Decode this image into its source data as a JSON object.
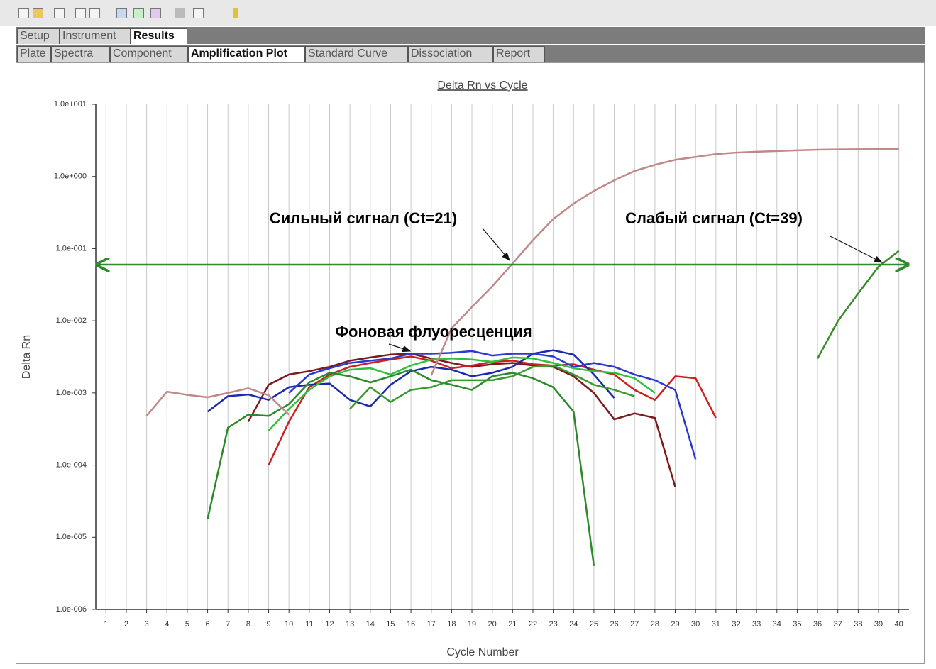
{
  "tabs": {
    "top": [
      "Setup",
      "Instrument",
      "Results"
    ],
    "bottom": [
      "Plate",
      "Spectra",
      "Component",
      "Amplification Plot",
      "Standard Curve",
      "Dissociation",
      "Report"
    ]
  },
  "chart_data": {
    "type": "line",
    "title": "Delta Rn vs Cycle",
    "x_label": "Cycle Number",
    "y_label": "Delta Rn",
    "log_y": true,
    "grid": true,
    "xlim": [
      0.5,
      40.5
    ],
    "xticks": [
      1,
      2,
      3,
      4,
      5,
      6,
      7,
      8,
      9,
      10,
      11,
      12,
      13,
      14,
      15,
      16,
      17,
      18,
      19,
      20,
      21,
      22,
      23,
      24,
      25,
      26,
      27,
      28,
      29,
      30,
      31,
      32,
      33,
      34,
      35,
      36,
      37,
      38,
      39,
      40
    ],
    "ylim": [
      1e-06,
      10
    ],
    "yticks": [
      {
        "value": 1e-06,
        "label": "1.0e-006"
      },
      {
        "value": 1e-05,
        "label": "1.0e-005"
      },
      {
        "value": 0.0001,
        "label": "1.0e-004"
      },
      {
        "value": 0.001,
        "label": "1.0e-003"
      },
      {
        "value": 0.01,
        "label": "1.0e-002"
      },
      {
        "value": 0.1,
        "label": "1.0e-001"
      },
      {
        "value": 1,
        "label": "1.0e+000"
      },
      {
        "value": 10,
        "label": "1.0e+001"
      }
    ],
    "threshold": 0.06,
    "threshold_color": "#2e8b2e",
    "annotations": [
      "Сильный сигнал (Ct=21)",
      "Слабый сигнал (Ct=39)",
      "Фоновая флуоресценция"
    ],
    "series": [
      {
        "color": "#7a1a1a",
        "x": [
          8,
          9,
          10,
          11,
          12,
          13,
          14,
          15,
          16,
          17,
          18,
          19,
          20,
          21,
          22,
          23,
          24,
          25,
          26,
          27,
          28,
          29
        ],
        "values": [
          0.0004,
          0.0013,
          0.0018,
          0.002,
          0.0023,
          0.0028,
          0.0031,
          0.0034,
          0.0035,
          0.003,
          0.0026,
          0.0023,
          0.0025,
          0.0026,
          0.0024,
          0.0023,
          0.0017,
          0.001,
          0.00043,
          0.00052,
          0.00045,
          5e-05
        ]
      },
      {
        "color": "#cc2020",
        "x": [
          9,
          10,
          11,
          12,
          13,
          14,
          15,
          16,
          17,
          18,
          19,
          20,
          21,
          22,
          23,
          24,
          25,
          26,
          27,
          28,
          29,
          30,
          31
        ],
        "values": [
          0.0001,
          0.0004,
          0.0012,
          0.0018,
          0.0023,
          0.0026,
          0.0029,
          0.0032,
          0.0028,
          0.0022,
          0.0024,
          0.0027,
          0.0028,
          0.0025,
          0.0024,
          0.0025,
          0.0021,
          0.0018,
          0.0011,
          0.0008,
          0.0017,
          0.0016,
          0.00045
        ]
      },
      {
        "color": "#1a2aa8",
        "x": [
          6,
          7,
          8,
          9,
          10,
          11,
          12,
          13,
          14,
          15,
          16,
          17,
          18,
          19,
          20,
          21,
          22,
          23,
          24,
          25,
          26
        ],
        "values": [
          0.00055,
          0.0009,
          0.00095,
          0.0008,
          0.0012,
          0.0013,
          0.00135,
          0.0008,
          0.00065,
          0.0013,
          0.002,
          0.0023,
          0.0021,
          0.0017,
          0.0019,
          0.0023,
          0.0035,
          0.0039,
          0.0034,
          0.0018,
          0.00085
        ]
      },
      {
        "color": "#2a3ad0",
        "x": [
          10,
          11,
          12,
          13,
          14,
          15,
          16,
          17,
          18,
          19,
          20,
          21,
          22,
          23,
          24,
          25,
          26,
          27,
          28,
          29,
          30
        ],
        "values": [
          0.001,
          0.0018,
          0.0022,
          0.0026,
          0.0028,
          0.003,
          0.0035,
          0.0035,
          0.0036,
          0.0038,
          0.0033,
          0.0035,
          0.0035,
          0.0032,
          0.0023,
          0.0026,
          0.0023,
          0.0018,
          0.0015,
          0.0011,
          0.00012
        ]
      },
      {
        "color": "#30c040",
        "x": [
          9,
          10,
          11,
          12,
          13,
          14,
          15,
          16,
          17,
          18,
          19,
          20,
          21,
          22,
          23,
          24,
          25,
          26,
          27,
          28
        ],
        "values": [
          0.0003,
          0.0006,
          0.0011,
          0.0017,
          0.0021,
          0.0022,
          0.0018,
          0.0024,
          0.0029,
          0.003,
          0.0029,
          0.0027,
          0.0031,
          0.003,
          0.0026,
          0.0022,
          0.002,
          0.0019,
          0.0016,
          0.001
        ]
      },
      {
        "color": "#2a8a2a",
        "x": [
          6,
          7,
          8,
          9,
          10,
          11,
          12,
          13,
          14,
          15,
          16,
          17,
          18,
          19,
          20,
          21,
          22,
          23,
          24,
          25
        ],
        "values": [
          1.8e-05,
          0.00033,
          0.0005,
          0.00048,
          0.0007,
          0.0014,
          0.0019,
          0.0017,
          0.0014,
          0.0017,
          0.0021,
          0.0015,
          0.0013,
          0.0011,
          0.0017,
          0.0019,
          0.0016,
          0.0012,
          0.00055,
          4e-06
        ]
      },
      {
        "color": "#3a9a30",
        "x": [
          13,
          14,
          15,
          16,
          17,
          18,
          19,
          20,
          21,
          22,
          23,
          24,
          25,
          26,
          27
        ],
        "values": [
          0.0006,
          0.0012,
          0.00075,
          0.0011,
          0.0012,
          0.0015,
          0.0015,
          0.0015,
          0.0017,
          0.0023,
          0.0024,
          0.0018,
          0.0013,
          0.0011,
          0.0009
        ]
      },
      {
        "color": "#c08888",
        "x": [
          3,
          4,
          5,
          6,
          7,
          8,
          9,
          10,
          11,
          12,
          13,
          14,
          15,
          16,
          17,
          18,
          19,
          20,
          21,
          22,
          23,
          24,
          25,
          26,
          27,
          28,
          29,
          30,
          31,
          32,
          33,
          34,
          35,
          36,
          37,
          38,
          39,
          40
        ],
        "values": [
          0.00048,
          0.00104,
          0.00094,
          0.00087,
          0.001,
          0.00116,
          0.00093,
          0.0005,
          null,
          null,
          null,
          null,
          null,
          null,
          0.00175,
          0.0079,
          0.0155,
          0.03,
          0.062,
          0.131,
          0.257,
          0.42,
          0.63,
          0.885,
          1.19,
          1.45,
          1.7,
          1.86,
          2.04,
          2.14,
          2.2,
          2.25,
          2.3,
          2.35,
          2.37,
          2.38,
          2.39,
          2.4
        ]
      },
      {
        "color": "#3a8a2a",
        "x": [
          36,
          37,
          38,
          39,
          40
        ],
        "values": [
          0.003,
          0.0099,
          0.024,
          0.056,
          0.093
        ]
      }
    ]
  }
}
